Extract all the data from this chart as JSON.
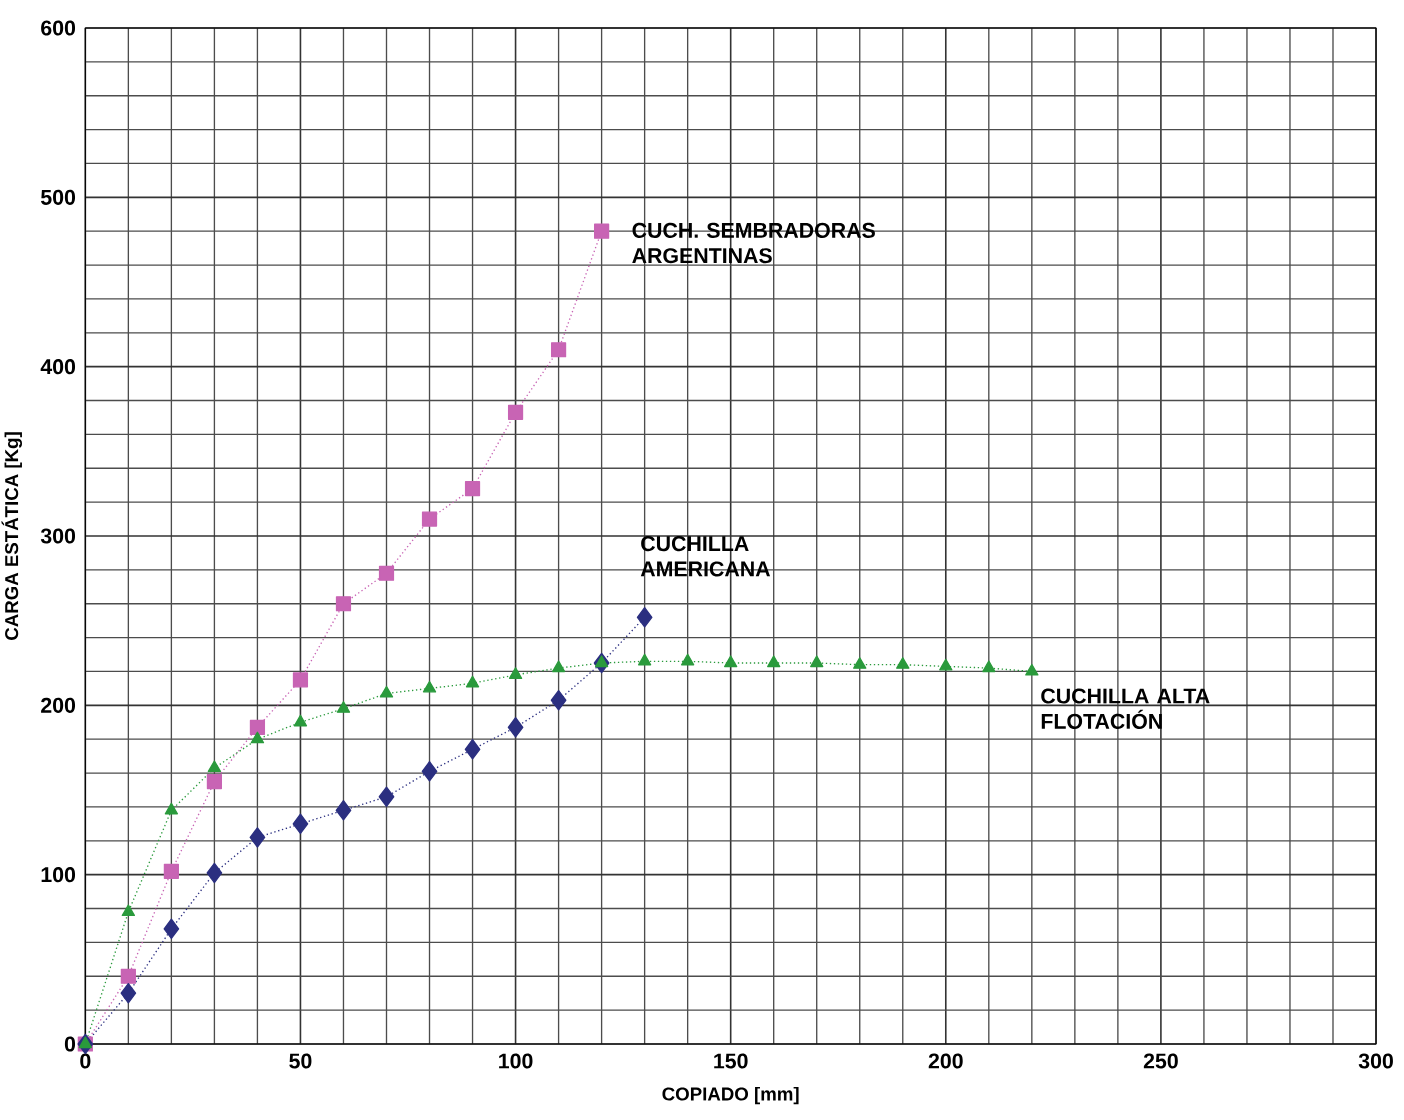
{
  "chart_data": {
    "type": "line",
    "xlabel": "COPIADO [mm]",
    "ylabel": "CARGA ESTÁTICA [Kg]",
    "xlim": [
      0,
      300
    ],
    "ylim": [
      0,
      600
    ],
    "xticks": [
      0,
      50,
      100,
      150,
      200,
      250,
      300
    ],
    "yticks": [
      0,
      100,
      200,
      300,
      400,
      500,
      600
    ],
    "grid": true,
    "line_style": "dotted",
    "series": [
      {
        "name": "CUCH. SEMBRADORAS ARGENTINAS",
        "color": "#c864b4",
        "marker": "square",
        "x": [
          0,
          10,
          20,
          30,
          40,
          50,
          60,
          70,
          80,
          90,
          100,
          110,
          120
        ],
        "values": [
          0,
          40,
          102,
          155,
          187,
          215,
          260,
          278,
          310,
          328,
          373,
          410,
          480
        ]
      },
      {
        "name": "CUCHILLA AMERICANA",
        "color": "#2b2f80",
        "marker": "diamond",
        "x": [
          0,
          10,
          20,
          30,
          40,
          50,
          60,
          70,
          80,
          90,
          100,
          110,
          120,
          130
        ],
        "values": [
          0,
          30,
          68,
          101,
          122,
          130,
          138,
          146,
          161,
          174,
          187,
          203,
          225,
          252
        ]
      },
      {
        "name": "CUCHILLA ALTA FLOTACIÓN",
        "color": "#2a9a3c",
        "marker": "triangle",
        "x": [
          0,
          10,
          20,
          30,
          40,
          50,
          60,
          70,
          80,
          90,
          100,
          110,
          120,
          130,
          140,
          150,
          160,
          170,
          180,
          190,
          200,
          210,
          220
        ],
        "values": [
          0,
          78,
          138,
          163,
          180,
          190,
          198,
          207,
          210,
          213,
          218,
          222,
          225,
          226,
          226,
          225,
          225,
          225,
          224,
          224,
          223,
          222,
          220
        ]
      }
    ]
  }
}
